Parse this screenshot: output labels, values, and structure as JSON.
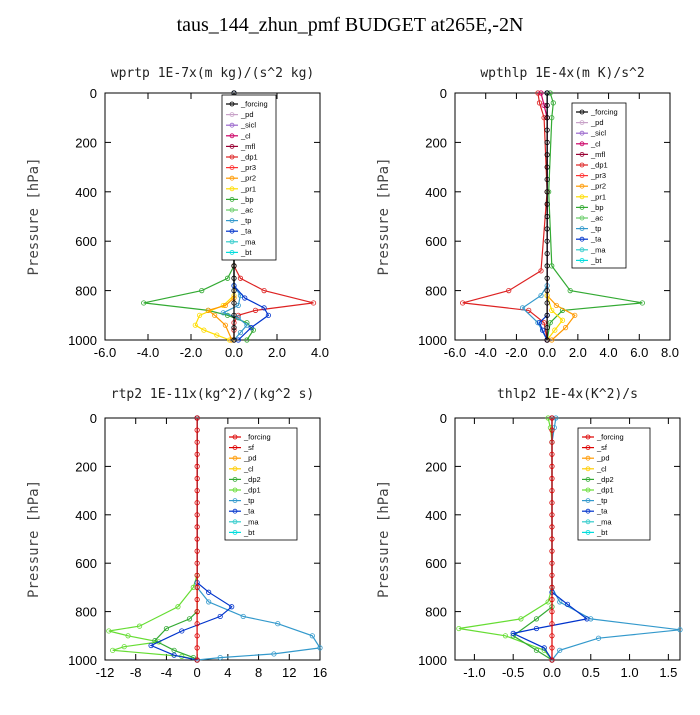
{
  "title": "taus_144_zhun_pmf  BUDGET at265E,-2N",
  "colors": {
    "forcing": "#000000",
    "pd": "#c8a2c8",
    "sicl": "#9966cc",
    "cl": "#cc0066",
    "mfl": "#990033",
    "dp1": "#dd2222",
    "pr3": "#ff3333",
    "pr2": "#ff9900",
    "pr1": "#ffdd00",
    "bp": "#33aa33",
    "ac": "#66cc66",
    "tp": "#3399cc",
    "ta": "#0033cc",
    "ma": "#33cccc",
    "bt": "#00dddd",
    "forcing_b": "#dd0000",
    "sf": "#dd0000",
    "pd_b": "#ff9900",
    "cl_b": "#ffcc00",
    "dp2": "#33aa33",
    "dp1_b": "#66dd33"
  },
  "chart_data": [
    {
      "type": "line",
      "title": "wprtp  1E-7x(m kg)/(s^2 kg)",
      "ylabel": "Pressure [hPa]",
      "xlim": [
        -6,
        4
      ],
      "ylim": [
        0,
        1000
      ],
      "y_inverted": true,
      "xticks": [
        "-6.0",
        "-4.0",
        "-2.0",
        "0.0",
        "2.0",
        "4.0"
      ],
      "xtick_values": [
        -6,
        -4,
        -2,
        0,
        2,
        4
      ],
      "yticks": [
        "0",
        "200",
        "400",
        "600",
        "800",
        "1000"
      ],
      "ytick_values": [
        0,
        200,
        400,
        600,
        800,
        1000
      ],
      "legend": [
        "_forcing",
        "_pd",
        "_sicl",
        "_cl",
        "_mfl",
        "_dp1",
        "_pr3",
        "_pr2",
        "_pr1",
        "_bp",
        "_ac",
        "_tp",
        "_ta",
        "_ma",
        "_bt"
      ],
      "legend_colors": [
        "#000000",
        "#c8a2c8",
        "#9966cc",
        "#cc0066",
        "#990033",
        "#dd2222",
        "#ff3333",
        "#ff9900",
        "#ffdd00",
        "#33aa33",
        "#66cc66",
        "#3399cc",
        "#0033cc",
        "#33cccc",
        "#00dddd"
      ],
      "legend_placement": "top-right",
      "series": [
        {
          "color": "#33aa33",
          "x": [
            0,
            0,
            -0.3,
            -1.5,
            -4.2,
            -1.2,
            -0.3,
            0.6,
            0.9,
            0.6
          ],
          "y": [
            0,
            700,
            750,
            800,
            850,
            880,
            900,
            930,
            960,
            1000
          ]
        },
        {
          "color": "#dd2222",
          "x": [
            0,
            0,
            0.3,
            1.4,
            3.7,
            1.0,
            0.2,
            0,
            0,
            0
          ],
          "y": [
            0,
            700,
            750,
            800,
            850,
            880,
            900,
            930,
            960,
            1000
          ]
        },
        {
          "color": "#ffdd00",
          "x": [
            0,
            0,
            -0.5,
            -1.6,
            -1.8,
            -1.4,
            -0.8,
            -0.2
          ],
          "y": [
            0,
            820,
            860,
            900,
            940,
            960,
            980,
            1000
          ]
        },
        {
          "color": "#ff9900",
          "x": [
            0,
            0,
            -0.4,
            -1.2,
            -0.9,
            -0.4,
            -0.1
          ],
          "y": [
            0,
            830,
            860,
            880,
            900,
            940,
            1000
          ]
        },
        {
          "color": "#3399cc",
          "x": [
            0,
            0,
            0.3,
            0.2,
            -0.5,
            0.2,
            0.6,
            0.3,
            0
          ],
          "y": [
            0,
            780,
            820,
            860,
            890,
            910,
            940,
            970,
            1000
          ]
        },
        {
          "color": "#0033cc",
          "x": [
            0,
            0,
            0.5,
            1.4,
            1.6,
            0.8,
            0.2
          ],
          "y": [
            0,
            780,
            830,
            870,
            900,
            950,
            1000
          ]
        },
        {
          "color": "#000000",
          "x": [
            0,
            0,
            0,
            0,
            0,
            0,
            0,
            0,
            0,
            0,
            0,
            0,
            0,
            0,
            0,
            0,
            0,
            0,
            0,
            0,
            0
          ],
          "y": [
            0,
            50,
            100,
            150,
            200,
            250,
            300,
            350,
            400,
            450,
            500,
            550,
            600,
            650,
            700,
            750,
            800,
            850,
            900,
            950,
            1000
          ]
        }
      ]
    },
    {
      "type": "line",
      "title": "wpthlp  1E-4x(m K)/s^2",
      "ylabel": "Pressure [hPa]",
      "xlim": [
        -6,
        8
      ],
      "ylim": [
        0,
        1000
      ],
      "y_inverted": true,
      "xticks": [
        "-6.0",
        "-4.0",
        "-2.0",
        "0.0",
        "2.0",
        "4.0",
        "6.0",
        "8.0"
      ],
      "xtick_values": [
        -6,
        -4,
        -2,
        0,
        2,
        4,
        6,
        8
      ],
      "yticks": [
        "0",
        "200",
        "400",
        "600",
        "800",
        "1000"
      ],
      "ytick_values": [
        0,
        200,
        400,
        600,
        800,
        1000
      ],
      "legend": [
        "_forcing",
        "_pd",
        "_sicl",
        "_cl",
        "_mfl",
        "_dp1",
        "_pr3",
        "_pr2",
        "_pr1",
        "_bp",
        "_ac",
        "_tp",
        "_ta",
        "_ma",
        "_bt"
      ],
      "legend_colors": [
        "#000000",
        "#c8a2c8",
        "#9966cc",
        "#cc0066",
        "#990033",
        "#dd2222",
        "#ff3333",
        "#ff9900",
        "#ffdd00",
        "#33aa33",
        "#66cc66",
        "#3399cc",
        "#0033cc",
        "#33cccc",
        "#00dddd"
      ],
      "legend_placement": "top-right",
      "series": [
        {
          "color": "#33aa33",
          "x": [
            0.2,
            0.4,
            0.3,
            0.1,
            0.3,
            1.5,
            6.2,
            1.0,
            0.2,
            0
          ],
          "y": [
            0,
            40,
            100,
            400,
            700,
            800,
            850,
            880,
            930,
            1000
          ]
        },
        {
          "color": "#dd2222",
          "x": [
            -0.6,
            -0.5,
            -0.2,
            0,
            -0.4,
            -2.5,
            -5.5,
            -1.2,
            -0.2,
            0
          ],
          "y": [
            0,
            40,
            100,
            400,
            720,
            800,
            850,
            880,
            930,
            1000
          ]
        },
        {
          "color": "#ff9900",
          "x": [
            0,
            0,
            0.6,
            1.8,
            1.2,
            0.3
          ],
          "y": [
            0,
            820,
            860,
            900,
            950,
            1000
          ]
        },
        {
          "color": "#ffdd00",
          "x": [
            0,
            0,
            0.3,
            1.0,
            0.5,
            0
          ],
          "y": [
            0,
            820,
            880,
            920,
            960,
            1000
          ]
        },
        {
          "color": "#3399cc",
          "x": [
            0,
            0,
            -0.4,
            -1.6,
            -0.6,
            0
          ],
          "y": [
            0,
            780,
            820,
            870,
            930,
            1000
          ]
        },
        {
          "color": "#0033cc",
          "x": [
            0,
            0,
            -0.5,
            -0.3,
            0
          ],
          "y": [
            0,
            900,
            930,
            960,
            1000
          ]
        },
        {
          "color": "#cc0066",
          "x": [
            -0.4,
            -0.2,
            0,
            0
          ],
          "y": [
            0,
            50,
            100,
            1000
          ]
        },
        {
          "color": "#000000",
          "x": [
            0,
            0,
            0,
            0,
            0,
            0,
            0,
            0,
            0,
            0,
            0,
            0,
            0,
            0,
            0,
            0,
            0,
            0,
            0,
            0,
            0
          ],
          "y": [
            0,
            50,
            100,
            150,
            200,
            250,
            300,
            350,
            400,
            450,
            500,
            550,
            600,
            650,
            700,
            750,
            800,
            850,
            900,
            950,
            1000
          ]
        }
      ]
    },
    {
      "type": "line",
      "title": "rtp2  1E-11x(kg^2)/(kg^2 s)",
      "ylabel": "Pressure [hPa]",
      "xlim": [
        -12,
        16
      ],
      "ylim": [
        0,
        1000
      ],
      "y_inverted": true,
      "xticks": [
        "-12",
        "-8",
        "-4",
        "0",
        "4",
        "8",
        "12",
        "16"
      ],
      "xtick_values": [
        -12,
        -8,
        -4,
        0,
        4,
        8,
        12,
        16
      ],
      "yticks": [
        "0",
        "200",
        "400",
        "600",
        "800",
        "1000"
      ],
      "ytick_values": [
        0,
        200,
        400,
        600,
        800,
        1000
      ],
      "legend": [
        "_forcing",
        "_sf",
        "_pd",
        "_cl",
        "_dp2",
        "_dp1",
        "_tp",
        "_ta",
        "_ma",
        "_bt"
      ],
      "legend_colors": [
        "#dd0000",
        "#dd0000",
        "#ff9900",
        "#ffcc00",
        "#33aa33",
        "#66dd33",
        "#3399cc",
        "#0033cc",
        "#33cccc",
        "#00dddd"
      ],
      "legend_placement": "top-right",
      "series": [
        {
          "color": "#66dd33",
          "x": [
            0,
            0,
            -0.5,
            -2.5,
            -7.5,
            -11.5,
            -9,
            -5,
            -9.5,
            -11,
            -2,
            0
          ],
          "y": [
            0,
            650,
            700,
            780,
            860,
            880,
            900,
            925,
            945,
            960,
            985,
            1000
          ]
        },
        {
          "color": "#33aa33",
          "x": [
            0,
            0,
            -1,
            -4,
            -5.5,
            -3,
            -0.5,
            0
          ],
          "y": [
            0,
            800,
            830,
            870,
            920,
            960,
            990,
            1000
          ]
        },
        {
          "color": "#3399cc",
          "x": [
            0,
            0,
            1.5,
            6,
            10.5,
            15,
            16,
            10,
            3,
            0
          ],
          "y": [
            0,
            700,
            760,
            820,
            850,
            900,
            950,
            975,
            990,
            1000
          ]
        },
        {
          "color": "#0033cc",
          "x": [
            0,
            0,
            1.5,
            4.5,
            3,
            -2,
            -6,
            -3,
            0
          ],
          "y": [
            0,
            680,
            720,
            780,
            820,
            880,
            940,
            980,
            1000
          ]
        },
        {
          "color": "#dd0000",
          "x": [
            0,
            0,
            0,
            0,
            0,
            0,
            0,
            0,
            0,
            0,
            0,
            0,
            0,
            0,
            0,
            0,
            0,
            0,
            0,
            0,
            0
          ],
          "y": [
            0,
            50,
            100,
            150,
            200,
            250,
            300,
            350,
            400,
            450,
            500,
            550,
            600,
            650,
            700,
            750,
            800,
            850,
            900,
            950,
            1000
          ]
        }
      ]
    },
    {
      "type": "line",
      "title": "thlp2  1E-4x(K^2)/s",
      "ylabel": "Pressure [hPa]",
      "xlim": [
        -1.25,
        1.65
      ],
      "ylim": [
        0,
        1000
      ],
      "y_inverted": true,
      "xticks": [
        "-1.0",
        "-0.5",
        "0.0",
        "0.5",
        "1.0",
        "1.5"
      ],
      "xtick_values": [
        -1,
        -0.5,
        0,
        0.5,
        1,
        1.5
      ],
      "yticks": [
        "0",
        "200",
        "400",
        "600",
        "800",
        "1000"
      ],
      "ytick_values": [
        0,
        200,
        400,
        600,
        800,
        1000
      ],
      "legend": [
        "_forcing",
        "_sf",
        "_pd",
        "_cl",
        "_dp2",
        "_dp1",
        "_tp",
        "_ta",
        "_ma",
        "_bt"
      ],
      "legend_colors": [
        "#dd0000",
        "#dd0000",
        "#ff9900",
        "#ffcc00",
        "#33aa33",
        "#66dd33",
        "#3399cc",
        "#0033cc",
        "#33cccc",
        "#00dddd"
      ],
      "legend_placement": "top-right",
      "series": [
        {
          "color": "#66dd33",
          "x": [
            -0.05,
            -0.02,
            0,
            0,
            -0.05,
            -0.4,
            -1.2,
            -0.6,
            -0.1,
            0
          ],
          "y": [
            0,
            40,
            100,
            700,
            760,
            830,
            870,
            900,
            960,
            1000
          ]
        },
        {
          "color": "#33aa33",
          "x": [
            0,
            0,
            -0.2,
            -0.5,
            -0.2,
            0
          ],
          "y": [
            0,
            780,
            830,
            900,
            960,
            1000
          ]
        },
        {
          "color": "#3399cc",
          "x": [
            0.05,
            0.03,
            0,
            0,
            0.1,
            0.5,
            1.65,
            0.6,
            0.1,
            0
          ],
          "y": [
            0,
            40,
            100,
            700,
            760,
            830,
            875,
            910,
            960,
            1000
          ]
        },
        {
          "color": "#0033cc",
          "x": [
            0,
            0,
            0.2,
            0.45,
            -0.2,
            -0.5,
            -0.1,
            0
          ],
          "y": [
            0,
            720,
            770,
            830,
            870,
            890,
            950,
            1000
          ]
        },
        {
          "color": "#dd0000",
          "x": [
            0,
            0,
            0,
            0,
            0,
            0,
            0,
            0,
            0,
            0,
            0,
            0,
            0,
            0,
            0,
            0,
            0,
            0,
            0,
            0,
            0
          ],
          "y": [
            0,
            50,
            100,
            150,
            200,
            250,
            300,
            350,
            400,
            450,
            500,
            550,
            600,
            650,
            700,
            750,
            800,
            850,
            900,
            950,
            1000
          ]
        }
      ]
    }
  ]
}
